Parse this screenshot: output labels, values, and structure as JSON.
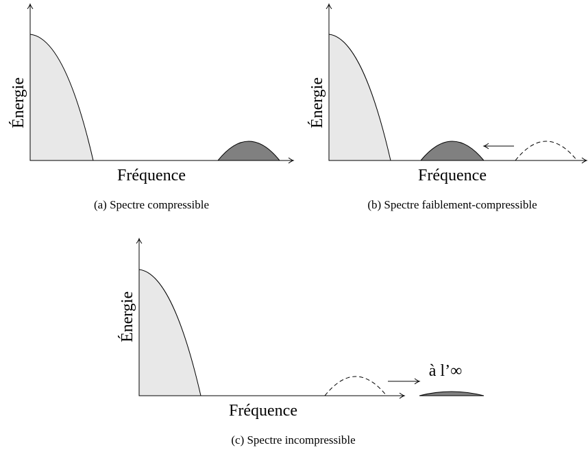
{
  "panels": [
    {
      "y_label": "Énergie",
      "x_label": "Fréquence",
      "caption": "(a) Spectre compressible"
    },
    {
      "y_label": "Énergie",
      "x_label": "Fréquence",
      "caption": "(b) Spectre faiblement-compressible"
    },
    {
      "y_label": "Énergie",
      "x_label": "Fréquence",
      "caption": "(c) Spectre incompressible",
      "annotation": "à l’∞"
    }
  ]
}
